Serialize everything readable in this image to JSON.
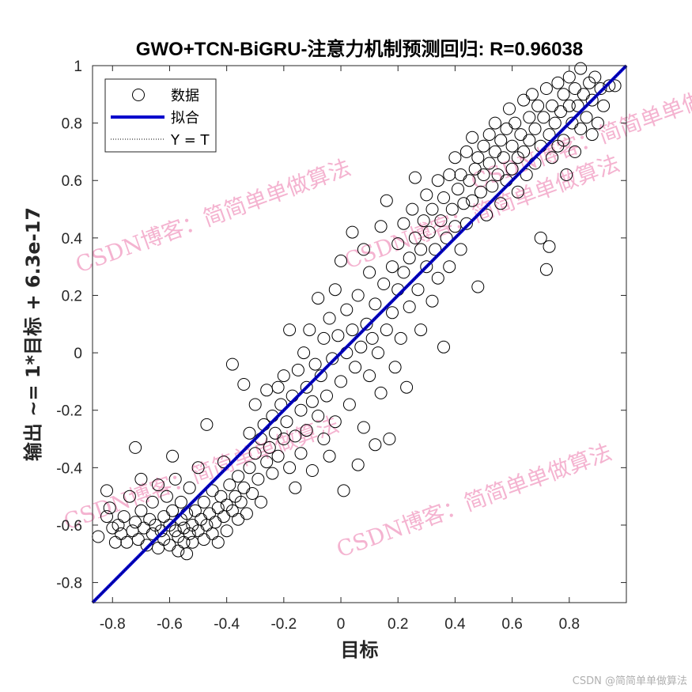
{
  "chart_data": {
    "type": "scatter",
    "title": "GWO+TCN-BiGRU-注意力机制预测回归: R=0.96038",
    "xlabel": "目标",
    "ylabel": "输出 ~= 1*目标 + 6.3e-17",
    "xlim": [
      -0.87,
      1.0
    ],
    "ylim": [
      -0.87,
      1.0
    ],
    "xticks": [
      -0.8,
      -0.6,
      -0.4,
      -0.2,
      0,
      0.2,
      0.4,
      0.6,
      0.8
    ],
    "xtick_labels": [
      "-0.8",
      "-0.6",
      "-0.4",
      "-0.2",
      "0",
      "0.2",
      "0.4",
      "0.6",
      "0.8"
    ],
    "yticks": [
      -0.8,
      -0.6,
      -0.4,
      -0.2,
      0,
      0.2,
      0.4,
      0.6,
      0.8,
      1
    ],
    "ytick_labels": [
      "-0.8",
      "-0.6",
      "-0.4",
      "-0.2",
      "0",
      "0.2",
      "0.4",
      "0.6",
      "0.8",
      "1"
    ],
    "grid": false,
    "legend_position": "top-left",
    "legend": [
      {
        "label": "数据",
        "style": "circle",
        "color": "#000000"
      },
      {
        "label": "拟合",
        "style": "line",
        "color": "#0000cc"
      },
      {
        "label": "Y = T",
        "style": "dotted",
        "color": "#000000"
      }
    ],
    "fit_line": {
      "slope": 1,
      "intercept": 6.3e-17,
      "color": "#0000cc"
    },
    "identity_line": {
      "slope": 1,
      "intercept": 0
    },
    "series": [
      {
        "name": "数据",
        "points": [
          [
            -0.85,
            -0.64
          ],
          [
            -0.82,
            -0.57
          ],
          [
            -0.82,
            -0.48
          ],
          [
            -0.81,
            -0.54
          ],
          [
            -0.8,
            -0.61
          ],
          [
            -0.79,
            -0.66
          ],
          [
            -0.78,
            -0.6
          ],
          [
            -0.77,
            -0.63
          ],
          [
            -0.76,
            -0.57
          ],
          [
            -0.75,
            -0.66
          ],
          [
            -0.74,
            -0.5
          ],
          [
            -0.73,
            -0.62
          ],
          [
            -0.72,
            -0.59
          ],
          [
            -0.72,
            -0.33
          ],
          [
            -0.71,
            -0.65
          ],
          [
            -0.7,
            -0.55
          ],
          [
            -0.7,
            -0.44
          ],
          [
            -0.69,
            -0.61
          ],
          [
            -0.68,
            -0.67
          ],
          [
            -0.67,
            -0.58
          ],
          [
            -0.66,
            -0.63
          ],
          [
            -0.66,
            -0.52
          ],
          [
            -0.65,
            -0.6
          ],
          [
            -0.64,
            -0.68
          ],
          [
            -0.64,
            -0.46
          ],
          [
            -0.63,
            -0.62
          ],
          [
            -0.62,
            -0.57
          ],
          [
            -0.62,
            -0.65
          ],
          [
            -0.61,
            -0.5
          ],
          [
            -0.6,
            -0.6
          ],
          [
            -0.6,
            -0.67
          ],
          [
            -0.59,
            -0.55
          ],
          [
            -0.59,
            -0.36
          ],
          [
            -0.58,
            -0.62
          ],
          [
            -0.58,
            -0.44
          ],
          [
            -0.57,
            -0.64
          ],
          [
            -0.57,
            -0.69
          ],
          [
            -0.56,
            -0.58
          ],
          [
            -0.56,
            -0.52
          ],
          [
            -0.55,
            -0.66
          ],
          [
            -0.55,
            -0.61
          ],
          [
            -0.54,
            -0.56
          ],
          [
            -0.54,
            -0.7
          ],
          [
            -0.53,
            -0.63
          ],
          [
            -0.53,
            -0.47
          ],
          [
            -0.52,
            -0.6
          ],
          [
            -0.52,
            -0.66
          ],
          [
            -0.51,
            -0.55
          ],
          [
            -0.5,
            -0.62
          ],
          [
            -0.5,
            -0.4
          ],
          [
            -0.49,
            -0.58
          ],
          [
            -0.48,
            -0.65
          ],
          [
            -0.48,
            -0.52
          ],
          [
            -0.47,
            -0.6
          ],
          [
            -0.47,
            -0.25
          ],
          [
            -0.46,
            -0.56
          ],
          [
            -0.45,
            -0.63
          ],
          [
            -0.45,
            -0.48
          ],
          [
            -0.44,
            -0.59
          ],
          [
            -0.43,
            -0.54
          ],
          [
            -0.43,
            -0.66
          ],
          [
            -0.42,
            -0.5
          ],
          [
            -0.41,
            -0.57
          ],
          [
            -0.41,
            -0.38
          ],
          [
            -0.4,
            -0.53
          ],
          [
            -0.4,
            -0.62
          ],
          [
            -0.39,
            -0.46
          ],
          [
            -0.38,
            -0.55
          ],
          [
            -0.38,
            -0.04
          ],
          [
            -0.37,
            -0.5
          ],
          [
            -0.36,
            -0.58
          ],
          [
            -0.36,
            -0.43
          ],
          [
            -0.35,
            -0.52
          ],
          [
            -0.34,
            -0.11
          ],
          [
            -0.34,
            -0.47
          ],
          [
            -0.33,
            -0.56
          ],
          [
            -0.32,
            -0.4
          ],
          [
            -0.32,
            -0.28
          ],
          [
            -0.31,
            -0.49
          ],
          [
            -0.3,
            -0.35
          ],
          [
            -0.3,
            -0.18
          ],
          [
            -0.29,
            -0.44
          ],
          [
            -0.28,
            -0.3
          ],
          [
            -0.28,
            -0.52
          ],
          [
            -0.27,
            -0.25
          ],
          [
            -0.26,
            -0.38
          ],
          [
            -0.26,
            -0.13
          ],
          [
            -0.25,
            -0.33
          ],
          [
            -0.24,
            -0.42
          ],
          [
            -0.24,
            -0.22
          ],
          [
            -0.23,
            -0.28
          ],
          [
            -0.22,
            -0.12
          ],
          [
            -0.22,
            -0.36
          ],
          [
            -0.21,
            -0.18
          ],
          [
            -0.2,
            -0.3
          ],
          [
            -0.2,
            -0.08
          ],
          [
            -0.19,
            -0.24
          ],
          [
            -0.18,
            -0.4
          ],
          [
            -0.18,
            0.08
          ],
          [
            -0.17,
            -0.15
          ],
          [
            -0.16,
            -0.29
          ],
          [
            -0.16,
            -0.47
          ],
          [
            -0.15,
            -0.06
          ],
          [
            -0.14,
            -0.2
          ],
          [
            -0.14,
            -0.35
          ],
          [
            -0.13,
            0.0
          ],
          [
            -0.12,
            -0.12
          ],
          [
            -0.12,
            -0.27
          ],
          [
            -0.11,
            0.08
          ],
          [
            -0.1,
            -0.17
          ],
          [
            -0.1,
            -0.41
          ],
          [
            -0.09,
            -0.04
          ],
          [
            -0.08,
            0.19
          ],
          [
            -0.08,
            -0.22
          ],
          [
            -0.07,
            -0.08
          ],
          [
            -0.06,
            0.05
          ],
          [
            -0.06,
            -0.3
          ],
          [
            -0.05,
            -0.15
          ],
          [
            -0.04,
            0.12
          ],
          [
            -0.04,
            -0.36
          ],
          [
            -0.03,
            -0.02
          ],
          [
            -0.02,
            0.22
          ],
          [
            -0.02,
            -0.24
          ],
          [
            -0.01,
            0.06
          ],
          [
            0.0,
            -0.1
          ],
          [
            0.0,
            0.32
          ],
          [
            0.01,
            -0.48
          ],
          [
            0.02,
            0.0
          ],
          [
            0.02,
            0.15
          ],
          [
            0.03,
            -0.18
          ],
          [
            0.04,
            0.08
          ],
          [
            0.04,
            0.42
          ],
          [
            0.05,
            -0.05
          ],
          [
            0.06,
            0.2
          ],
          [
            0.06,
            -0.39
          ],
          [
            0.07,
            0.02
          ],
          [
            0.08,
            0.36
          ],
          [
            0.08,
            -0.26
          ],
          [
            0.09,
            0.1
          ],
          [
            0.1,
            -0.08
          ],
          [
            0.1,
            0.28
          ],
          [
            0.11,
            0.05
          ],
          [
            0.12,
            -0.32
          ],
          [
            0.12,
            0.17
          ],
          [
            0.13,
            0.0
          ],
          [
            0.14,
            0.44
          ],
          [
            0.14,
            -0.14
          ],
          [
            0.15,
            0.24
          ],
          [
            0.16,
            0.53
          ],
          [
            0.16,
            0.08
          ],
          [
            0.17,
            -0.3
          ],
          [
            0.18,
            0.3
          ],
          [
            0.18,
            0.14
          ],
          [
            0.19,
            -0.05
          ],
          [
            0.2,
            0.38
          ],
          [
            0.2,
            0.22
          ],
          [
            0.21,
            0.05
          ],
          [
            0.22,
            0.45
          ],
          [
            0.22,
            0.28
          ],
          [
            0.23,
            -0.12
          ],
          [
            0.24,
            0.33
          ],
          [
            0.24,
            0.16
          ],
          [
            0.25,
            0.5
          ],
          [
            0.26,
            0.4
          ],
          [
            0.26,
            0.61
          ],
          [
            0.27,
            0.22
          ],
          [
            0.28,
            0.36
          ],
          [
            0.28,
            0.08
          ],
          [
            0.29,
            0.46
          ],
          [
            0.3,
            0.3
          ],
          [
            0.3,
            0.55
          ],
          [
            0.31,
            0.42
          ],
          [
            0.32,
            0.18
          ],
          [
            0.32,
            0.5
          ],
          [
            0.33,
            0.36
          ],
          [
            0.34,
            0.6
          ],
          [
            0.34,
            0.26
          ],
          [
            0.35,
            0.46
          ],
          [
            0.36,
            0.02
          ],
          [
            0.36,
            0.54
          ],
          [
            0.37,
            0.4
          ],
          [
            0.38,
            0.62
          ],
          [
            0.38,
            0.3
          ],
          [
            0.39,
            0.5
          ],
          [
            0.4,
            0.44
          ],
          [
            0.4,
            0.68
          ],
          [
            0.41,
            0.57
          ],
          [
            0.42,
            0.36
          ],
          [
            0.42,
            0.62
          ],
          [
            0.43,
            0.52
          ],
          [
            0.44,
            0.7
          ],
          [
            0.44,
            0.45
          ],
          [
            0.45,
            0.6
          ],
          [
            0.46,
            0.75
          ],
          [
            0.46,
            0.53
          ],
          [
            0.47,
            0.64
          ],
          [
            0.48,
            0.23
          ],
          [
            0.48,
            0.68
          ],
          [
            0.49,
            0.56
          ],
          [
            0.5,
            0.72
          ],
          [
            0.5,
            0.62
          ],
          [
            0.51,
            0.48
          ],
          [
            0.52,
            0.76
          ],
          [
            0.52,
            0.66
          ],
          [
            0.53,
            0.58
          ],
          [
            0.54,
            0.8
          ],
          [
            0.54,
            0.7
          ],
          [
            0.55,
            0.62
          ],
          [
            0.56,
            0.74
          ],
          [
            0.56,
            0.52
          ],
          [
            0.57,
            0.68
          ],
          [
            0.58,
            0.78
          ],
          [
            0.58,
            0.6
          ],
          [
            0.59,
            0.85
          ],
          [
            0.6,
            0.72
          ],
          [
            0.6,
            0.64
          ],
          [
            0.61,
            0.8
          ],
          [
            0.62,
            0.68
          ],
          [
            0.62,
            0.56
          ],
          [
            0.63,
            0.76
          ],
          [
            0.64,
            0.88
          ],
          [
            0.64,
            0.7
          ],
          [
            0.65,
            0.62
          ],
          [
            0.66,
            0.82
          ],
          [
            0.66,
            0.74
          ],
          [
            0.67,
            0.9
          ],
          [
            0.68,
            0.66
          ],
          [
            0.68,
            0.78
          ],
          [
            0.69,
            0.86
          ],
          [
            0.7,
            0.72
          ],
          [
            0.7,
            0.4
          ],
          [
            0.71,
            0.82
          ],
          [
            0.72,
            0.92
          ],
          [
            0.72,
            0.29
          ],
          [
            0.73,
            0.76
          ],
          [
            0.73,
            0.37
          ],
          [
            0.74,
            0.86
          ],
          [
            0.74,
            0.68
          ],
          [
            0.75,
            0.8
          ],
          [
            0.76,
            0.94
          ],
          [
            0.76,
            0.72
          ],
          [
            0.77,
            0.84
          ],
          [
            0.78,
            0.9
          ],
          [
            0.78,
            0.74
          ],
          [
            0.79,
            0.62
          ],
          [
            0.8,
            0.86
          ],
          [
            0.8,
            0.96
          ],
          [
            0.81,
            0.8
          ],
          [
            0.82,
            0.92
          ],
          [
            0.82,
            0.7
          ],
          [
            0.83,
            0.86
          ],
          [
            0.84,
            0.99
          ],
          [
            0.84,
            0.78
          ],
          [
            0.85,
            0.9
          ],
          [
            0.86,
            0.82
          ],
          [
            0.87,
            0.94
          ],
          [
            0.88,
            0.76
          ],
          [
            0.88,
            0.88
          ],
          [
            0.89,
            0.96
          ],
          [
            0.9,
            0.8
          ],
          [
            0.91,
            0.92
          ],
          [
            0.92,
            0.86
          ],
          [
            0.94,
            0.93
          ],
          [
            0.96,
            0.93
          ]
        ]
      }
    ]
  },
  "watermarks": [
    "CSDN博客：简简单单做算法",
    "CSDN博客：简简单单做算法",
    "CSDN博客：简简单单做算法",
    "CSDN博客：简简单单做算法",
    "CSDN博客：简简单单做算法"
  ],
  "footer": "CSDN @简简单单做算法"
}
